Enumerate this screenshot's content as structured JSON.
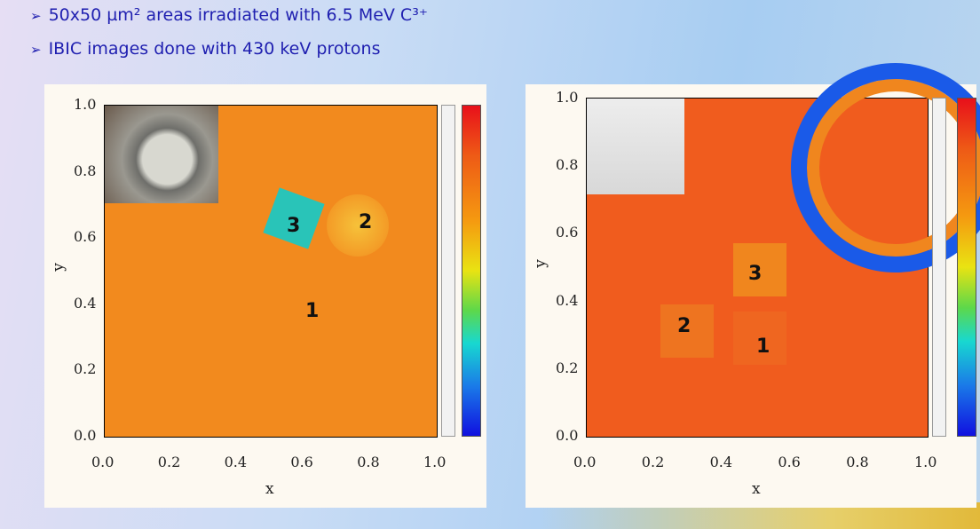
{
  "bullets": [
    "50x50 µm² areas irradiated with 6.5 MeV C³⁺",
    "IBIC images done with 430 keV protons"
  ],
  "panels": [
    {
      "x_label": "x",
      "y_label": "y",
      "x_ticks": [
        "0.0",
        "0.2",
        "0.4",
        "0.6",
        "0.8",
        "1.0"
      ],
      "y_ticks": [
        "0.0",
        "0.2",
        "0.4",
        "0.6",
        "0.8",
        "1.0"
      ],
      "regions": [
        "1",
        "2",
        "3"
      ]
    },
    {
      "x_label": "x",
      "y_label": "y",
      "x_ticks": [
        "0.0",
        "0.2",
        "0.4",
        "0.6",
        "0.8",
        "1.0"
      ],
      "y_ticks": [
        "0.0",
        "0.2",
        "0.4",
        "0.6",
        "0.8",
        "1.0"
      ],
      "regions": [
        "1",
        "2",
        "3"
      ]
    }
  ]
}
